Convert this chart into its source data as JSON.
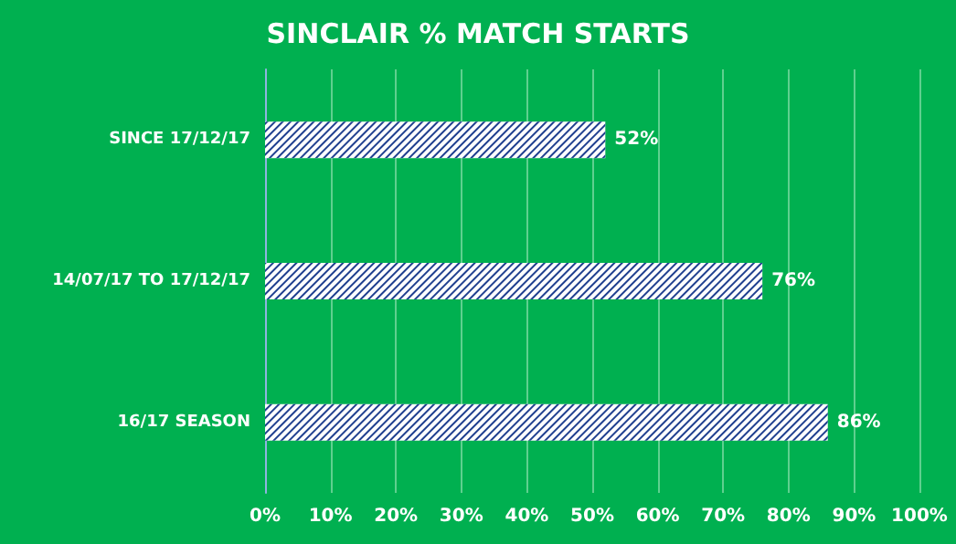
{
  "chart_data": {
    "type": "bar",
    "orientation": "horizontal",
    "title": "SINCLAIR % MATCH STARTS",
    "categories": [
      "SINCE 17/12/17",
      "14/07/17 TO 17/12/17",
      "16/17 SEASON"
    ],
    "values": [
      52,
      76,
      86
    ],
    "color": "#ffffff",
    "value_labels": [
      "52%",
      "76%",
      "86%"
    ],
    "xlim": [
      0,
      100
    ],
    "xticks": [
      {
        "value": 0,
        "label": "0%"
      },
      {
        "value": 10,
        "label": "10%"
      },
      {
        "value": 20,
        "label": "20%"
      },
      {
        "value": 30,
        "label": "30%"
      },
      {
        "value": 40,
        "label": "40%"
      },
      {
        "value": 50,
        "label": "50%"
      },
      {
        "value": 60,
        "label": "60%"
      },
      {
        "value": 70,
        "label": "70%"
      },
      {
        "value": 80,
        "label": "80%"
      },
      {
        "value": 90,
        "label": "90%"
      },
      {
        "value": 100,
        "label": "100%"
      }
    ],
    "grid": "x"
  }
}
